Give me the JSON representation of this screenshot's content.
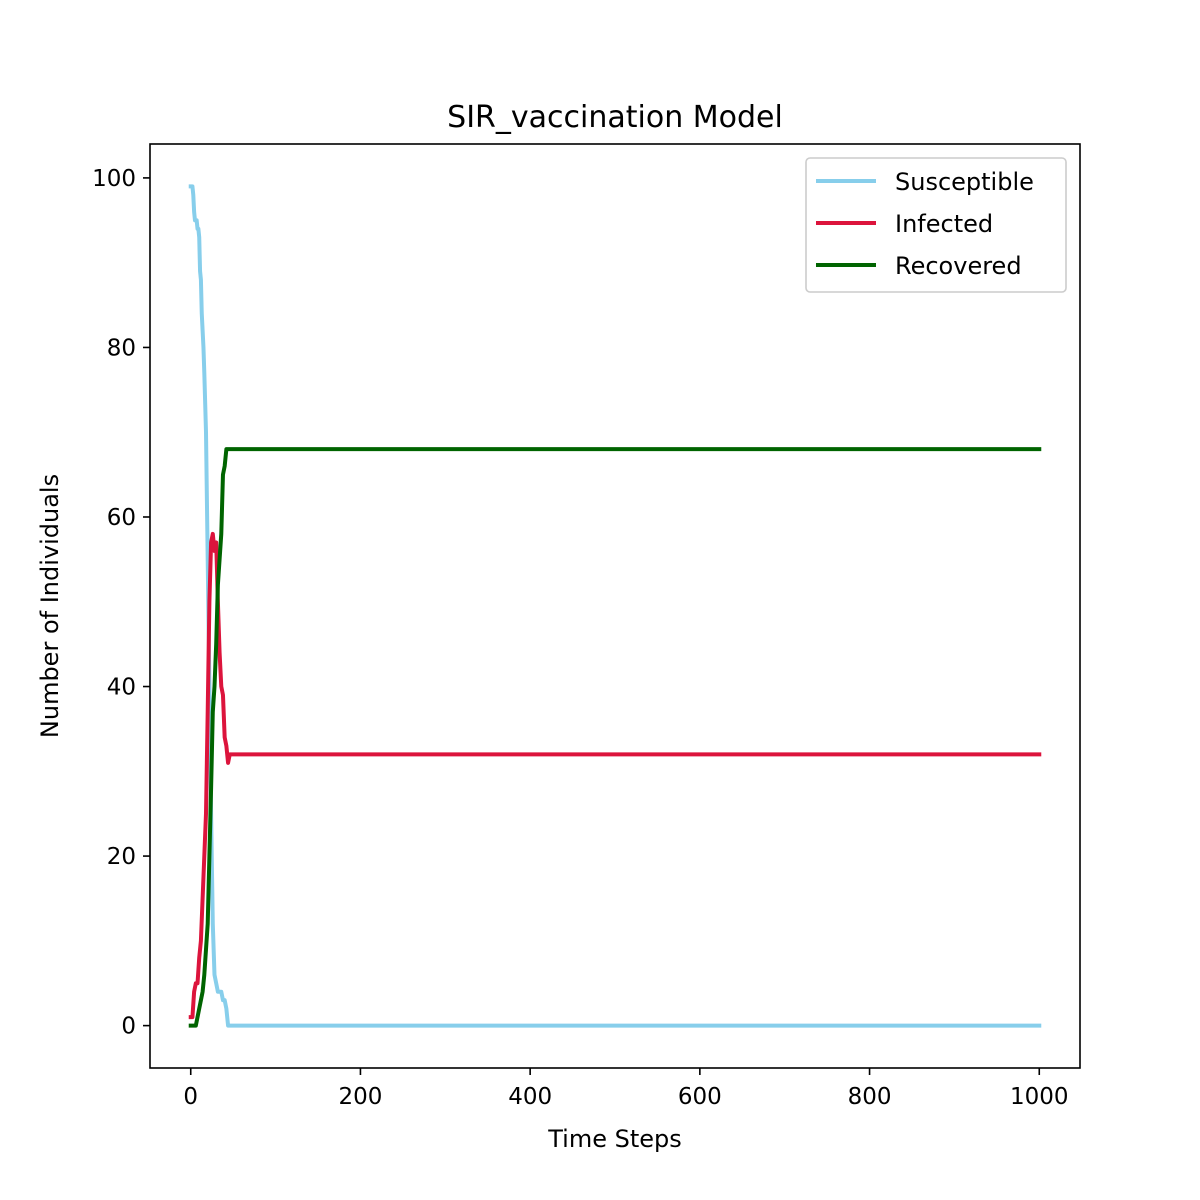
{
  "chart_data": {
    "type": "line",
    "title": "SIR_vaccination Model",
    "xlabel": "Time Steps",
    "ylabel": "Number of Individuals",
    "xlim": [
      -48,
      1048
    ],
    "ylim": [
      -5,
      104
    ],
    "xticks": [
      0,
      200,
      400,
      600,
      800,
      1000
    ],
    "yticks": [
      0,
      20,
      40,
      60,
      80,
      100
    ],
    "grid": false,
    "legend_position": "top-right",
    "series": [
      {
        "name": "Susceptible",
        "color": "#87CEEB",
        "x": [
          0,
          2,
          3,
          4,
          5,
          6,
          7,
          8,
          9,
          10,
          11,
          12,
          13,
          14,
          15,
          16,
          18,
          20,
          22,
          24,
          26,
          28,
          30,
          32,
          34,
          36,
          38,
          40,
          42,
          44,
          46,
          1000
        ],
        "y": [
          99,
          99,
          98,
          96,
          95,
          95,
          95,
          94,
          94,
          93,
          89,
          88,
          84,
          82,
          80,
          77,
          70,
          55,
          40,
          25,
          12,
          6,
          5,
          4,
          4,
          4,
          3,
          3,
          2,
          0,
          0,
          0
        ]
      },
      {
        "name": "Infected",
        "color": "#DC143C",
        "x": [
          0,
          2,
          4,
          6,
          8,
          10,
          12,
          14,
          16,
          18,
          20,
          22,
          24,
          26,
          28,
          30,
          32,
          34,
          36,
          38,
          40,
          42,
          44,
          46,
          1000
        ],
        "y": [
          1,
          1,
          4,
          5,
          5,
          8,
          10,
          15,
          20,
          25,
          37,
          50,
          57,
          58,
          56,
          57,
          50,
          44,
          40,
          39,
          34,
          33,
          31,
          32,
          32
        ]
      },
      {
        "name": "Recovered",
        "color": "#006400",
        "x": [
          0,
          2,
          4,
          6,
          8,
          10,
          12,
          14,
          16,
          18,
          20,
          22,
          24,
          26,
          28,
          30,
          32,
          34,
          36,
          38,
          40,
          42,
          44,
          46,
          1000
        ],
        "y": [
          0,
          0,
          0,
          0,
          1,
          2,
          3,
          4,
          6,
          9,
          12,
          20,
          28,
          37,
          40,
          45,
          52,
          55,
          58,
          65,
          66,
          68,
          68,
          68,
          68
        ]
      }
    ]
  }
}
